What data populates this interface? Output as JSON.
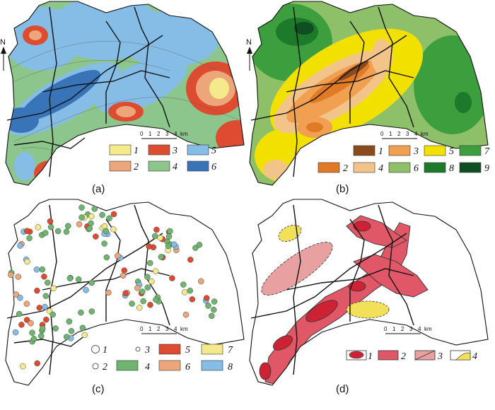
{
  "panels": [
    {
      "id": "a",
      "label": "(a)",
      "legend": [
        "1",
        "2",
        "3",
        "4",
        "5",
        "6"
      ],
      "colors": [
        "#f4ea8c",
        "#eda679",
        "#dd4c30",
        "#8cc68c",
        "#86bde6",
        "#3a74b8"
      ]
    },
    {
      "id": "b",
      "label": "(b)",
      "legend": [
        "1",
        "2",
        "3",
        "4",
        "5",
        "6",
        "7",
        "8",
        "9"
      ],
      "colors": [
        "#8a4a1c",
        "#e07a26",
        "#f0a050",
        "#f2c48a",
        "#f2e000",
        "#8dc068",
        "#3d9e3d",
        "#1d7a2a",
        "#0f4e20"
      ]
    },
    {
      "id": "c",
      "label": "(c)",
      "legend": [
        "1",
        "2",
        "3",
        "4",
        "5",
        "6",
        "7",
        "8"
      ],
      "colors": [
        "#ffffff",
        "#ffffff",
        "#ffffff",
        "#6fb56f",
        "#dd4c30",
        "#eda679",
        "#f4ea8c",
        "#86bde6"
      ]
    },
    {
      "id": "d",
      "label": "(d)",
      "legend": [
        "1",
        "2",
        "3",
        "4"
      ],
      "colors": [
        "#cc2233",
        "#e05868",
        "#e8a0a0",
        "#f2e05a"
      ]
    }
  ],
  "scale": {
    "ticks": [
      "0",
      "1",
      "2",
      "3",
      "4"
    ],
    "unit": "km"
  },
  "north": "N"
}
